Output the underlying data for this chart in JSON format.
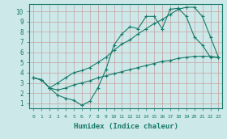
{
  "xlabel": "Humidex (Indice chaleur)",
  "background_color": "#cce8e8",
  "line_color": "#1a7a6a",
  "xlim": [
    -0.5,
    23.5
  ],
  "ylim": [
    0.5,
    10.7
  ],
  "xticks": [
    0,
    1,
    2,
    3,
    4,
    5,
    6,
    7,
    8,
    9,
    10,
    11,
    12,
    13,
    14,
    15,
    16,
    17,
    18,
    19,
    20,
    21,
    22,
    23
  ],
  "yticks": [
    1,
    2,
    3,
    4,
    5,
    6,
    7,
    8,
    9,
    10
  ],
  "line1_x": [
    0,
    1,
    2,
    3,
    4,
    5,
    6,
    7,
    8,
    9,
    10,
    11,
    12,
    13,
    14,
    15,
    16,
    17,
    18,
    19,
    20,
    21,
    22,
    23
  ],
  "line1_y": [
    3.5,
    3.3,
    2.5,
    1.8,
    1.5,
    1.3,
    0.8,
    1.2,
    2.5,
    4.3,
    6.7,
    7.8,
    8.5,
    8.3,
    9.5,
    9.5,
    8.3,
    10.2,
    10.3,
    9.5,
    7.5,
    6.7,
    5.5,
    5.5
  ],
  "line2_x": [
    0,
    1,
    2,
    3,
    4,
    5,
    6,
    7,
    8,
    9,
    10,
    11,
    12,
    13,
    14,
    15,
    16,
    17,
    18,
    19,
    20,
    21,
    22,
    23
  ],
  "line2_y": [
    3.5,
    3.3,
    2.5,
    3.0,
    3.5,
    4.0,
    4.2,
    4.5,
    5.0,
    5.5,
    6.2,
    6.8,
    7.2,
    7.8,
    8.3,
    8.8,
    9.2,
    9.7,
    10.2,
    10.4,
    10.4,
    9.5,
    7.5,
    5.5
  ],
  "line3_x": [
    0,
    1,
    2,
    3,
    4,
    5,
    6,
    7,
    8,
    9,
    10,
    11,
    12,
    13,
    14,
    15,
    16,
    17,
    18,
    19,
    20,
    21,
    22,
    23
  ],
  "line3_y": [
    3.5,
    3.3,
    2.5,
    2.3,
    2.5,
    2.8,
    3.0,
    3.2,
    3.5,
    3.7,
    3.9,
    4.1,
    4.3,
    4.5,
    4.7,
    4.9,
    5.1,
    5.2,
    5.4,
    5.5,
    5.6,
    5.6,
    5.6,
    5.5
  ]
}
